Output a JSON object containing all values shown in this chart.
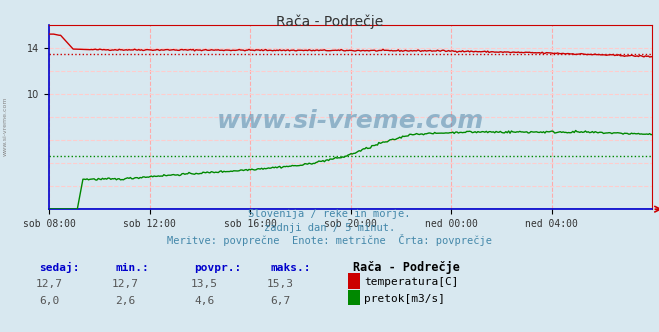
{
  "title": "Rača - Podrečje",
  "bg_color": "#d8e8f0",
  "plot_bg_color": "#d8e8f0",
  "grid_color_v": "#ffaaaa",
  "grid_color_h": "#ffcccc",
  "x_labels": [
    "sob 08:00",
    "sob 12:00",
    "sob 16:00",
    "sob 20:00",
    "ned 00:00",
    "ned 04:00"
  ],
  "x_ticks_norm": [
    0.0,
    0.1667,
    0.3333,
    0.5,
    0.6667,
    0.8333
  ],
  "y_tick_labels": [
    "10",
    "14"
  ],
  "y_tick_vals": [
    10,
    14
  ],
  "temp_color": "#cc0000",
  "flow_color": "#008800",
  "blue_color": "#0000cc",
  "temp_avg": 13.5,
  "flow_avg": 4.6,
  "y_min": 0,
  "y_max": 16,
  "subtitle1": "Slovenija / reke in morje.",
  "subtitle2": "zadnji dan / 5 minut.",
  "subtitle3": "Meritve: povprečne  Enote: metrične  Črta: povprečje",
  "footer_color": "#4488aa",
  "title_color": "#333333",
  "watermark": "www.si-vreme.com",
  "sedaj_temp": "12,7",
  "min_temp": "12,7",
  "povpr_temp": "13,5",
  "maks_temp": "15,3",
  "sedaj_flow": "6,0",
  "min_flow": "2,6",
  "povpr_flow": "4,6",
  "maks_flow": "6,7",
  "legend_title": "Rača - Podrečje",
  "legend_temp": "temperatura[C]",
  "legend_flow": "pretok[m3/s]",
  "header_labels": [
    "sedaj:",
    "min.:",
    "povpr.:",
    "maks.:"
  ],
  "header_color": "#0000cc"
}
